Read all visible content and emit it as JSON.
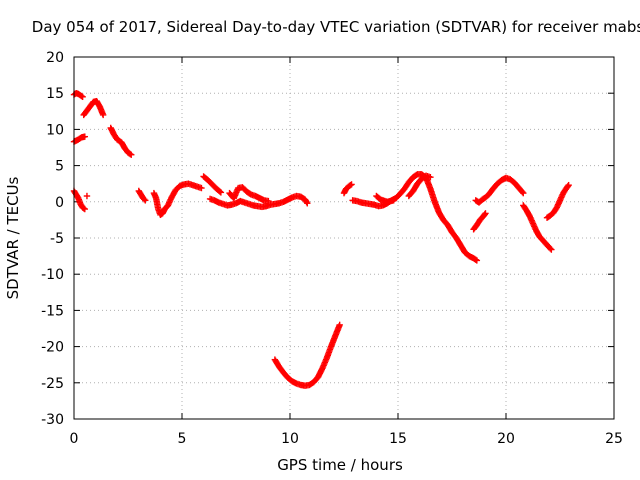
{
  "chart_data": {
    "type": "scatter",
    "title": "Day 054 of 2017, Sidereal Day-to-day VTEC variation (SDTVAR) for receiver mabs",
    "xlabel": "GPS time / hours",
    "ylabel": "SDTVAR / TECUs",
    "xlim": [
      0,
      25
    ],
    "ylim": [
      -30,
      20
    ],
    "x_ticks": [
      0,
      5,
      10,
      15,
      20,
      25
    ],
    "y_ticks": [
      -30,
      -25,
      -20,
      -15,
      -10,
      -5,
      0,
      5,
      10,
      15,
      20
    ],
    "grid": true,
    "marker": "plus",
    "color": "#ff0000",
    "series": [
      {
        "name": "SDTVAR",
        "segments": [
          {
            "x": [
              0.0,
              0.1,
              0.2,
              0.3,
              0.4
            ],
            "y": [
              14.8,
              15.0,
              14.9,
              14.7,
              14.5
            ]
          },
          {
            "x": [
              0.0,
              0.2,
              0.35,
              0.5
            ],
            "y": [
              8.3,
              8.6,
              8.9,
              9.0
            ]
          },
          {
            "x": [
              0.45,
              0.6,
              0.75,
              0.9,
              1.05,
              1.2,
              1.35
            ],
            "y": [
              12.0,
              12.6,
              13.2,
              13.8,
              13.9,
              13.1,
              12.0
            ]
          },
          {
            "x": [
              1.7,
              1.85,
              2.0,
              2.2,
              2.35,
              2.5,
              2.65
            ],
            "y": [
              10.2,
              9.3,
              8.6,
              8.2,
              7.4,
              6.8,
              6.5
            ]
          },
          {
            "x": [
              0.0,
              0.1,
              0.2,
              0.3,
              0.4,
              0.5
            ],
            "y": [
              1.5,
              1.0,
              0.5,
              -0.3,
              -0.8,
              -1.0
            ]
          },
          {
            "x": [
              0.6
            ],
            "y": [
              0.8
            ]
          },
          {
            "x": [
              3.0,
              3.1,
              3.2,
              3.3
            ],
            "y": [
              1.5,
              1.0,
              0.5,
              0.2
            ]
          },
          {
            "x": [
              3.7,
              3.8,
              3.9,
              4.0,
              4.1,
              4.2,
              4.35,
              4.5,
              4.7,
              4.9,
              5.1,
              5.3,
              5.5,
              5.7,
              5.9
            ],
            "y": [
              1.2,
              0.5,
              -1.0,
              -1.8,
              -1.6,
              -1.0,
              -0.5,
              0.5,
              1.6,
              2.2,
              2.4,
              2.5,
              2.3,
              2.1,
              1.9
            ]
          },
          {
            "x": [
              6.0,
              6.2,
              6.4,
              6.6,
              6.8
            ],
            "y": [
              3.5,
              3.0,
              2.4,
              1.8,
              1.3
            ]
          },
          {
            "x": [
              6.3,
              6.5,
              6.7,
              6.9,
              7.1,
              7.3,
              7.5,
              7.7,
              7.9,
              8.1,
              8.3,
              8.5,
              8.7,
              8.9,
              9.1,
              9.3,
              9.5,
              9.7,
              9.9,
              10.1,
              10.3,
              10.5,
              10.7,
              10.8
            ],
            "y": [
              0.4,
              0.2,
              -0.1,
              -0.3,
              -0.5,
              -0.4,
              -0.2,
              0.1,
              -0.1,
              -0.3,
              -0.5,
              -0.6,
              -0.7,
              -0.6,
              -0.4,
              -0.3,
              -0.2,
              0.0,
              0.3,
              0.6,
              0.8,
              0.7,
              0.3,
              -0.2
            ]
          },
          {
            "x": [
              7.2,
              7.4,
              7.6,
              7.8,
              8.0,
              8.2,
              8.4,
              8.6,
              8.8,
              9.0
            ],
            "y": [
              1.2,
              0.5,
              1.9,
              2.0,
              1.4,
              1.0,
              0.8,
              0.5,
              0.2,
              0.1
            ]
          },
          {
            "x": [
              9.3,
              9.5,
              9.7,
              9.9,
              10.1,
              10.3,
              10.5,
              10.7,
              10.9,
              11.1,
              11.3,
              11.5,
              11.7,
              11.9,
              12.1,
              12.3
            ],
            "y": [
              -21.8,
              -22.8,
              -23.6,
              -24.3,
              -24.8,
              -25.1,
              -25.3,
              -25.4,
              -25.3,
              -24.9,
              -24.2,
              -23.0,
              -21.6,
              -20.0,
              -18.5,
              -17.0
            ]
          },
          {
            "x": [
              12.5,
              12.6,
              12.75,
              12.85
            ],
            "y": [
              1.2,
              1.8,
              2.2,
              2.4
            ]
          },
          {
            "x": [
              12.9,
              13.1,
              13.3,
              13.5,
              13.7,
              13.9,
              14.1,
              14.3,
              14.5,
              14.7,
              14.9,
              15.1,
              15.3,
              15.5,
              15.7,
              15.9,
              16.1,
              16.3,
              16.5,
              16.7,
              16.9,
              17.1,
              17.3,
              17.5,
              17.7,
              17.9,
              18.1,
              18.3,
              18.5,
              18.65
            ],
            "y": [
              0.2,
              0.1,
              -0.1,
              -0.2,
              -0.3,
              -0.4,
              -0.6,
              -0.5,
              -0.2,
              0.2,
              0.5,
              1.1,
              1.8,
              2.7,
              3.4,
              3.8,
              3.8,
              3.3,
              1.8,
              0.0,
              -1.5,
              -2.5,
              -3.2,
              -4.2,
              -5.0,
              -6.0,
              -7.0,
              -7.5,
              -7.8,
              -8.1
            ]
          },
          {
            "x": [
              15.5,
              15.7,
              15.9,
              16.1,
              16.3,
              16.5
            ],
            "y": [
              0.8,
              1.5,
              2.5,
              3.2,
              3.6,
              3.4
            ]
          },
          {
            "x": [
              14.0,
              14.2,
              14.5,
              14.8
            ],
            "y": [
              0.8,
              0.3,
              0.0,
              0.2
            ]
          },
          {
            "x": [
              18.6,
              18.75,
              18.9,
              19.05,
              19.2,
              19.4,
              19.6,
              19.8,
              20.0,
              20.2,
              20.4,
              20.6,
              20.8
            ],
            "y": [
              0.2,
              -0.1,
              0.3,
              0.6,
              1.0,
              1.8,
              2.5,
              3.0,
              3.3,
              3.1,
              2.6,
              1.9,
              1.2
            ]
          },
          {
            "x": [
              18.5,
              18.65,
              18.8,
              18.95,
              19.05
            ],
            "y": [
              -3.8,
              -3.2,
              -2.5,
              -2.0,
              -1.6
            ]
          },
          {
            "x": [
              20.8,
              20.95,
              21.1,
              21.25,
              21.4,
              21.55,
              21.7,
              21.85,
              22.0,
              22.1
            ],
            "y": [
              -0.5,
              -1.2,
              -2.0,
              -3.0,
              -4.0,
              -4.8,
              -5.3,
              -5.8,
              -6.3,
              -6.6
            ]
          },
          {
            "x": [
              21.9,
              22.05,
              22.2,
              22.35,
              22.5,
              22.65,
              22.8,
              22.9
            ],
            "y": [
              -2.2,
              -1.9,
              -1.5,
              -0.8,
              0.2,
              1.2,
              1.9,
              2.3
            ]
          }
        ]
      }
    ]
  }
}
